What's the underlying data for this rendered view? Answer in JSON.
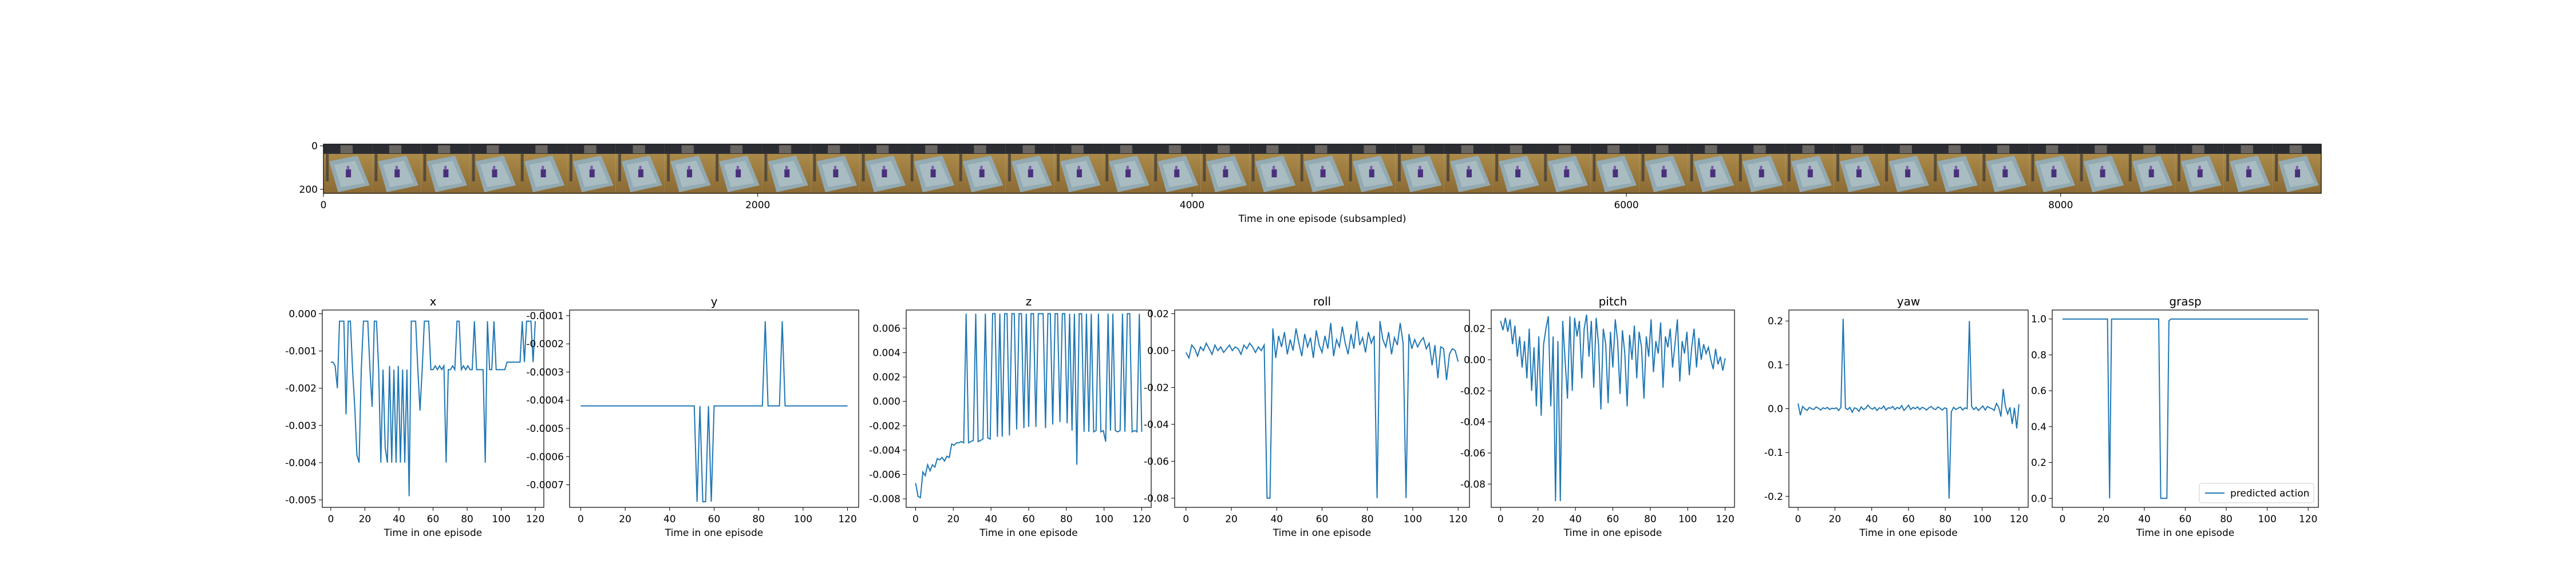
{
  "filmstrip": {
    "y_ticks": [
      "0",
      "200"
    ],
    "x_ticks": [
      "0",
      "2000",
      "4000",
      "6000",
      "8000"
    ],
    "x_tick_values": [
      0,
      2000,
      4000,
      6000,
      8000
    ],
    "x_range": [
      0,
      9200
    ],
    "xlabel": "Time in one episode (subsampled)",
    "frame_count": 41
  },
  "legend_label": "predicted action",
  "line_color": "#1f77b4",
  "chart_data": [
    {
      "type": "line",
      "title": "x",
      "xlabel": "Time in one episode",
      "xlim": [
        -5,
        125
      ],
      "xticks": [
        0,
        20,
        40,
        60,
        80,
        100,
        120
      ],
      "ylim": [
        -0.0052,
        0.0001
      ],
      "yticks": [
        0.0,
        -0.001,
        -0.002,
        -0.003,
        -0.004,
        -0.005
      ],
      "ytick_labels": [
        "0.000",
        "-0.001",
        "-0.002",
        "-0.003",
        "-0.004",
        "-0.005"
      ],
      "series": [
        {
          "values": [
            -0.0013,
            -0.0013,
            -0.0014,
            -0.002,
            -0.0002,
            -0.0002,
            -0.0002,
            -0.0027,
            -0.0002,
            -0.0002,
            -0.0015,
            -0.0025,
            -0.0038,
            -0.004,
            -0.0015,
            -0.0002,
            -0.0002,
            -0.0002,
            -0.0015,
            -0.0025,
            -0.0002,
            -0.0002,
            -0.0015,
            -0.004,
            -0.0015,
            -0.0036,
            -0.004,
            -0.0014,
            -0.004,
            -0.0015,
            -0.004,
            -0.0014,
            -0.004,
            -0.0015,
            -0.004,
            -0.0015,
            -0.0049,
            -0.0002,
            -0.0002,
            -0.0002,
            -0.0015,
            -0.0026,
            -0.0015,
            -0.0002,
            -0.0002,
            -0.0002,
            -0.0015,
            -0.0015,
            -0.0014,
            -0.0015,
            -0.0014,
            -0.0015,
            -0.0014,
            -0.004,
            -0.0015,
            -0.0015,
            -0.0014,
            -0.0015,
            -0.0002,
            -0.0002,
            -0.0015,
            -0.0014,
            -0.0015,
            -0.0014,
            -0.0015,
            -0.0015,
            -0.0002,
            -0.0015,
            -0.0015,
            -0.0015,
            -0.0015,
            -0.004,
            -0.0002,
            -0.0015,
            -0.0015,
            -0.0002,
            -0.0015,
            -0.0015,
            -0.0015,
            -0.0015,
            -0.0015,
            -0.0013,
            -0.0013,
            -0.0013,
            -0.0013,
            -0.0013,
            -0.0013,
            -0.0013,
            -0.0002,
            -0.0013,
            -0.0002,
            -0.0002,
            -0.0002,
            -0.0013,
            -0.0002
          ]
        }
      ]
    },
    {
      "type": "line",
      "title": "y",
      "xlabel": "Time in one episode",
      "xlim": [
        -5,
        125
      ],
      "xticks": [
        0,
        20,
        40,
        60,
        80,
        100,
        120
      ],
      "ylim": [
        -0.00078,
        -8e-05
      ],
      "yticks": [
        -0.0001,
        -0.0002,
        -0.0003,
        -0.0004,
        -0.0005,
        -0.0006,
        -0.0007
      ],
      "ytick_labels": [
        "-0.0001",
        "-0.0002",
        "-0.0003",
        "-0.0004",
        "-0.0005",
        "-0.0006",
        "-0.0007"
      ],
      "series": [
        {
          "values": [
            -0.00042,
            -0.00042,
            -0.00042,
            -0.00042,
            -0.00042,
            -0.00042,
            -0.00042,
            -0.00042,
            -0.00042,
            -0.00042,
            -0.00042,
            -0.00042,
            -0.00042,
            -0.00042,
            -0.00042,
            -0.00042,
            -0.00042,
            -0.00042,
            -0.00042,
            -0.00042,
            -0.00042,
            -0.00042,
            -0.00042,
            -0.00042,
            -0.00042,
            -0.00042,
            -0.00042,
            -0.00042,
            -0.00042,
            -0.00042,
            -0.00042,
            -0.00042,
            -0.00042,
            -0.00042,
            -0.00042,
            -0.00042,
            -0.00042,
            -0.00042,
            -0.00042,
            -0.00042,
            -0.00042,
            -0.00076,
            -0.00042,
            -0.00076,
            -0.00076,
            -0.00042,
            -0.00076,
            -0.00042,
            -0.00042,
            -0.00042,
            -0.00042,
            -0.00042,
            -0.00042,
            -0.00042,
            -0.00042,
            -0.00042,
            -0.00042,
            -0.00042,
            -0.00042,
            -0.00042,
            -0.00042,
            -0.00042,
            -0.00042,
            -0.00042,
            -0.00042,
            -0.00012,
            -0.00042,
            -0.00042,
            -0.00042,
            -0.00042,
            -0.00042,
            -0.00012,
            -0.00042,
            -0.00042,
            -0.00042,
            -0.00042,
            -0.00042,
            -0.00042,
            -0.00042,
            -0.00042,
            -0.00042,
            -0.00042,
            -0.00042,
            -0.00042,
            -0.00042,
            -0.00042,
            -0.00042,
            -0.00042,
            -0.00042,
            -0.00042,
            -0.00042,
            -0.00042,
            -0.00042,
            -0.00042,
            -0.00042
          ]
        }
      ]
    },
    {
      "type": "line",
      "title": "z",
      "xlabel": "Time in one episode",
      "xlim": [
        -5,
        125
      ],
      "xticks": [
        0,
        20,
        40,
        60,
        80,
        100,
        120
      ],
      "ylim": [
        -0.0087,
        0.0075
      ],
      "yticks": [
        0.006,
        0.004,
        0.002,
        0.0,
        -0.002,
        -0.004,
        -0.006,
        -0.008
      ],
      "ytick_labels": [
        "0.006",
        "0.004",
        "0.002",
        "0.000",
        "-0.002",
        "-0.004",
        "-0.006",
        "-0.008"
      ],
      "series": [
        {
          "values": [
            -0.0067,
            -0.0078,
            -0.0079,
            -0.0058,
            -0.0061,
            -0.0052,
            -0.0057,
            -0.0052,
            -0.0054,
            -0.0047,
            -0.0048,
            -0.0046,
            -0.0049,
            -0.0045,
            -0.0046,
            -0.0035,
            -0.0036,
            -0.0034,
            -0.0034,
            -0.0033,
            -0.0034,
            0.0072,
            -0.0034,
            -0.0033,
            -0.0032,
            0.0072,
            -0.0033,
            -0.0032,
            -0.0031,
            0.0072,
            -0.003,
            -0.0031,
            0.0072,
            0.0072,
            -0.0029,
            0.0072,
            -0.0029,
            0.0072,
            0.0072,
            -0.0028,
            0.0072,
            0.0072,
            -0.0023,
            0.0072,
            0.0072,
            -0.0022,
            0.0072,
            -0.0021,
            0.0072,
            0.0072,
            -0.0021,
            0.0072,
            0.0072,
            0.0072,
            -0.0022,
            0.0072,
            0.0072,
            -0.0019,
            0.0072,
            0.0072,
            -0.0017,
            0.0072,
            0.0072,
            -0.0018,
            0.0072,
            -0.0024,
            0.0072,
            -0.0052,
            0.0072,
            0.0072,
            -0.0025,
            0.0072,
            -0.0025,
            0.0072,
            -0.0025,
            -0.0024,
            0.0072,
            -0.0025,
            -0.0024,
            -0.0033,
            0.0072,
            -0.0024,
            0.0072,
            -0.0024,
            -0.0025,
            -0.0024,
            0.0072,
            -0.0025,
            0.0072,
            0.0072,
            -0.0025,
            -0.0024,
            -0.0025,
            0.0072,
            -0.0025
          ]
        }
      ]
    },
    {
      "type": "line",
      "title": "roll",
      "xlabel": "Time in one episode",
      "xlim": [
        -5,
        125
      ],
      "xticks": [
        0,
        20,
        40,
        60,
        80,
        100,
        120
      ],
      "ylim": [
        -0.085,
        0.022
      ],
      "yticks": [
        0.02,
        0.0,
        -0.02,
        -0.04,
        -0.06,
        -0.08
      ],
      "ytick_labels": [
        "0.02",
        "0.00",
        "-0.02",
        "-0.04",
        "-0.06",
        "-0.08"
      ],
      "series": [
        {
          "values": [
            -0.001,
            -0.004,
            0.003,
            0.001,
            -0.003,
            0.002,
            0.0,
            0.004,
            0.001,
            -0.002,
            0.003,
            0.0,
            0.002,
            -0.001,
            0.001,
            0.003,
            0.0,
            0.002,
            0.001,
            -0.002,
            0.003,
            0.001,
            0.004,
            0.002,
            -0.001,
            0.002,
            0.0,
            0.003,
            -0.08,
            -0.08,
            0.012,
            -0.004,
            0.008,
            0.002,
            0.01,
            -0.002,
            0.006,
            0.0,
            0.012,
            0.004,
            -0.003,
            0.009,
            0.002,
            0.007,
            -0.004,
            0.011,
            0.003,
            -0.001,
            0.008,
            0.001,
            0.015,
            -0.003,
            0.006,
            0.002,
            0.013,
            0.004,
            -0.002,
            0.009,
            0.001,
            0.016,
            0.003,
            0.007,
            -0.001,
            0.01,
            0.004,
            0.008,
            -0.08,
            0.016,
            0.006,
            0.002,
            0.01,
            -0.002,
            0.007,
            0.003,
            0.015,
            0.004,
            -0.08,
            0.009,
            0.001,
            0.006,
            0.002,
            0.005,
            0.007,
            0.001,
            0.004,
            -0.008,
            0.003,
            -0.015,
            0.002,
            0.001,
            -0.016,
            -0.002,
            0.001,
            0.0,
            -0.006
          ]
        }
      ]
    },
    {
      "type": "line",
      "title": "pitch",
      "xlabel": "Time in one episode",
      "xlim": [
        -5,
        125
      ],
      "xticks": [
        0,
        20,
        40,
        60,
        80,
        100,
        120
      ],
      "ylim": [
        -0.095,
        0.032
      ],
      "yticks": [
        0.02,
        0.0,
        -0.02,
        -0.04,
        -0.06,
        -0.08
      ],
      "ytick_labels": [
        "0.02",
        "0.00",
        "-0.02",
        "-0.04",
        "-0.06",
        "-0.08"
      ],
      "series": [
        {
          "values": [
            0.025,
            0.019,
            0.027,
            0.018,
            0.026,
            0.01,
            0.022,
            0.002,
            0.015,
            -0.005,
            0.012,
            -0.012,
            0.02,
            -0.02,
            0.008,
            -0.03,
            0.015,
            -0.036,
            0.01,
            0.02,
            0.028,
            -0.03,
            0.015,
            -0.091,
            0.012,
            -0.091,
            0.025,
            0.0,
            -0.025,
            0.028,
            -0.02,
            0.027,
            0.015,
            0.025,
            -0.012,
            0.02,
            0.029,
            0.002,
            0.025,
            -0.018,
            0.027,
            0.01,
            -0.032,
            0.02,
            0.01,
            -0.028,
            0.018,
            -0.005,
            0.026,
            0.012,
            -0.022,
            0.019,
            0.004,
            -0.03,
            0.016,
            0.0,
            0.022,
            -0.012,
            0.018,
            0.008,
            -0.025,
            0.015,
            0.002,
            0.026,
            -0.008,
            0.012,
            0.004,
            0.024,
            -0.018,
            0.015,
            0.008,
            0.02,
            -0.005,
            0.01,
            0.026,
            -0.014,
            0.012,
            0.004,
            0.018,
            -0.01,
            0.008,
            0.02,
            -0.005,
            0.014,
            0.0,
            0.01,
            0.004,
            0.008,
            0.0,
            -0.006,
            0.007,
            -0.003,
            0.002,
            -0.007,
            0.001
          ]
        }
      ]
    },
    {
      "type": "line",
      "title": "yaw",
      "xlabel": "Time in one episode",
      "xlim": [
        -5,
        125
      ],
      "xticks": [
        0,
        20,
        40,
        60,
        80,
        100,
        120
      ],
      "ylim": [
        -0.225,
        0.225
      ],
      "yticks": [
        0.2,
        0.1,
        0.0,
        -0.1,
        -0.2
      ],
      "ytick_labels": [
        "0.2",
        "0.1",
        "0.0",
        "-0.1",
        "-0.2"
      ],
      "series": [
        {
          "values": [
            0.012,
            -0.015,
            0.005,
            0.0,
            -0.004,
            0.003,
            0.0,
            -0.002,
            0.004,
            0.001,
            -0.003,
            0.002,
            0.0,
            0.003,
            -0.002,
            0.001,
            0.0,
            0.002,
            -0.004,
            0.003,
            0.205,
            0.001,
            -0.002,
            0.003,
            -0.008,
            0.002,
            0.0,
            -0.006,
            0.004,
            -0.002,
            0.001,
            0.008,
            0.002,
            -0.001,
            0.003,
            -0.004,
            0.002,
            0.0,
            0.006,
            -0.003,
            0.002,
            0.001,
            0.005,
            -0.002,
            0.003,
            0.0,
            0.007,
            -0.004,
            0.002,
            0.008,
            -0.002,
            0.003,
            0.0,
            0.004,
            -0.002,
            0.003,
            0.001,
            -0.003,
            0.002,
            0.005,
            0.0,
            -0.002,
            0.004,
            0.001,
            -0.003,
            0.002,
            0.0,
            -0.205,
            -0.007,
            0.003,
            -0.002,
            0.001,
            0.004,
            -0.003,
            0.002,
            0.0,
            0.2,
            0.005,
            -0.002,
            0.003,
            -0.004,
            0.001,
            0.006,
            -0.003,
            0.005,
            0.002,
            0.0,
            -0.004,
            0.012,
            0.003,
            -0.018,
            0.045,
            0.005,
            -0.012,
            0.003,
            -0.035,
            0.002,
            -0.045,
            0.01
          ]
        }
      ]
    },
    {
      "type": "line",
      "title": "grasp",
      "xlabel": "Time in one episode",
      "xlim": [
        -5,
        125
      ],
      "xticks": [
        0,
        20,
        40,
        60,
        80,
        100,
        120
      ],
      "ylim": [
        -0.05,
        1.05
      ],
      "yticks": [
        0.0,
        0.2,
        0.4,
        0.6,
        0.8,
        1.0
      ],
      "ytick_labels": [
        "0.0",
        "0.2",
        "0.4",
        "0.6",
        "0.8",
        "1.0"
      ],
      "legend": true,
      "series": [
        {
          "name": "predicted action",
          "x": [
            0,
            22,
            23,
            24,
            25,
            26,
            47,
            48,
            51,
            52,
            53,
            120
          ],
          "values": [
            1.0,
            1.0,
            0.0,
            1.0,
            1.0,
            1.0,
            1.0,
            0.0,
            0.0,
            0.99,
            1.0,
            1.0
          ]
        }
      ]
    }
  ]
}
